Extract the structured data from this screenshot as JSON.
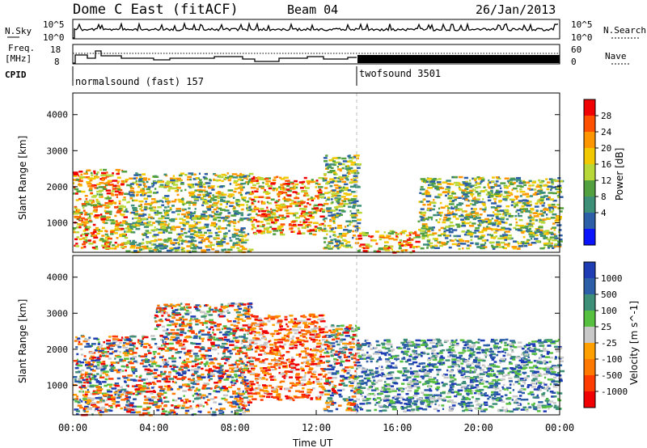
{
  "header": {
    "title": "Dome C East (fitACF)",
    "beam": "Beam 04",
    "date": "26/Jan/2013"
  },
  "panels": {
    "nsky": {
      "left_label": "N.Sky",
      "right_label": "N.Search",
      "left_top": "10^5",
      "left_bottom": "10^0",
      "right_top": "10^5",
      "right_bottom": "10^0"
    },
    "freq": {
      "left_label_1": "Freq.",
      "left_label_2": "[MHz]",
      "right_label": "Nave",
      "left_top": "18",
      "left_bottom": "8",
      "right_top": "60",
      "right_bottom": "0"
    },
    "cpid": {
      "label": "CPID",
      "segments": [
        {
          "name": "normalsound (fast) 157",
          "start_hour": 0
        },
        {
          "name": "twofsound 3501",
          "start_hour": 14
        }
      ]
    }
  },
  "chart_data": [
    {
      "type": "heatmap",
      "ylabel": "Slant Range [km]",
      "ylim": [
        180,
        4600
      ],
      "yticks": [
        1000,
        2000,
        3000,
        4000
      ],
      "xlim": [
        0,
        24
      ],
      "colorbar": {
        "label": "Power [dB]",
        "ticks": [
          "28",
          "24",
          "20",
          "16",
          "12",
          "8",
          "4"
        ],
        "colors": [
          "#f00000",
          "#ff5000",
          "#ff9600",
          "#f2c800",
          "#b8d83a",
          "#52a040",
          "#3d8f78",
          "#2c5fa8",
          "#0a14ff"
        ]
      },
      "echo_regions": [
        {
          "x": [
            0,
            2.5
          ],
          "y": [
            300,
            2500
          ],
          "level": "high"
        },
        {
          "x": [
            2.5,
            8.7
          ],
          "y": [
            200,
            2400
          ],
          "level": "medium"
        },
        {
          "x": [
            8.7,
            12.3
          ],
          "y": [
            700,
            2300
          ],
          "level": "high"
        },
        {
          "x": [
            12.3,
            14.0
          ],
          "y": [
            300,
            2900
          ],
          "level": "medium"
        },
        {
          "x": [
            14.0,
            17.0
          ],
          "y": [
            200,
            800
          ],
          "level": "high"
        },
        {
          "x": [
            17.0,
            24.0
          ],
          "y": [
            300,
            2300
          ],
          "level": "medium"
        }
      ]
    },
    {
      "type": "heatmap",
      "ylabel": "Slant Range [km]",
      "xlabel": "Time UT",
      "ylim": [
        180,
        4600
      ],
      "yticks": [
        1000,
        2000,
        3000,
        4000
      ],
      "xlim": [
        0,
        24
      ],
      "xticks": [
        "00:00",
        "04:00",
        "08:00",
        "12:00",
        "16:00",
        "20:00",
        "00:00"
      ],
      "colorbar": {
        "label": "Velocity [m s^-1]",
        "ticks": [
          "1000",
          "500",
          "100",
          "25",
          "-25",
          "-100",
          "-500",
          "-1000"
        ],
        "colors": [
          "#1e3cb4",
          "#2c5fa8",
          "#3d8f78",
          "#58c040",
          "#c8c8c8",
          "#ffa000",
          "#ff7800",
          "#ff3c00",
          "#f00000"
        ]
      },
      "echo_regions": [
        {
          "x": [
            0,
            4.0
          ],
          "y": [
            200,
            2400
          ],
          "sign": "mixed"
        },
        {
          "x": [
            4.0,
            8.7
          ],
          "y": [
            200,
            3300
          ],
          "sign": "mixed"
        },
        {
          "x": [
            8.7,
            12.3
          ],
          "y": [
            600,
            3000
          ],
          "sign": "negative"
        },
        {
          "x": [
            12.3,
            14.0
          ],
          "y": [
            300,
            2700
          ],
          "sign": "mixed"
        },
        {
          "x": [
            14.0,
            24.0
          ],
          "y": [
            300,
            2300
          ],
          "sign": "positive"
        }
      ]
    }
  ]
}
